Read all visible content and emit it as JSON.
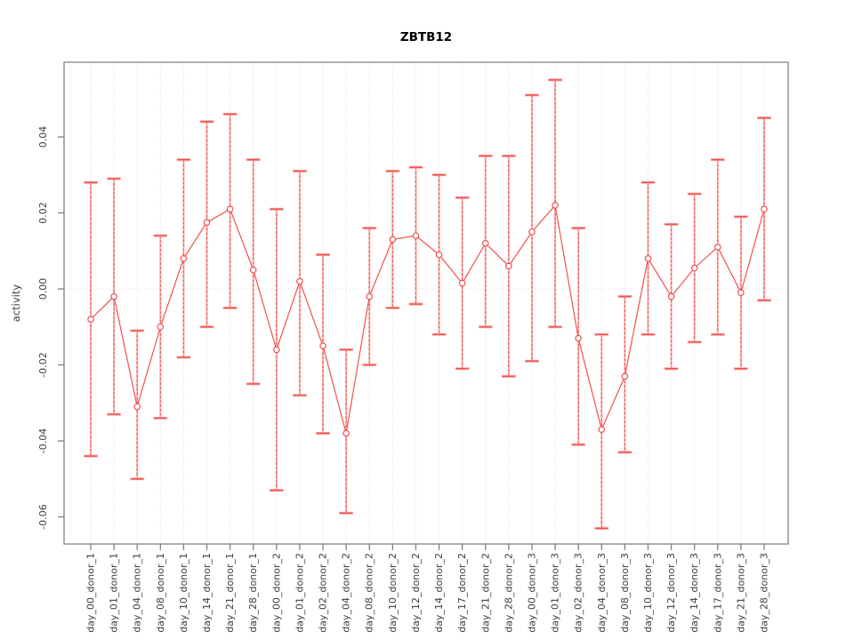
{
  "page": {
    "background": "#ffffff"
  },
  "chart_data": {
    "type": "line",
    "title": "ZBTB12",
    "xlabel": "",
    "ylabel": "activity",
    "legend": "none",
    "grid": {
      "vertical_dotted_per_category": true,
      "horizontal_dotted_at_zero": true
    },
    "marker": "open-circle",
    "error_bars": true,
    "ylim": [
      -0.066,
      0.058
    ],
    "ytick_labels": [
      "0.04",
      "0.02",
      "0.00",
      "-0.02",
      "-0.04",
      "-0.06"
    ],
    "ytick_values": [
      0.04,
      0.02,
      0.0,
      -0.02,
      -0.04,
      -0.06
    ],
    "colors": {
      "series": "#f0514e",
      "error_shaft_underlay": "#f8adab",
      "grid": "#d9d9d9",
      "axis_box": "#828282",
      "tick_label": "#3d3d3d",
      "title": "#000000"
    },
    "categories": [
      "day_00_donor_1",
      "day_01_donor_1",
      "day_04_donor_1",
      "day_08_donor_1",
      "day_10_donor_1",
      "day_14_donor_1",
      "day_21_donor_1",
      "day_28_donor_1",
      "day_00_donor_2",
      "day_01_donor_2",
      "day_02_donor_2",
      "day_04_donor_2",
      "day_08_donor_2",
      "day_10_donor_2",
      "day_12_donor_2",
      "day_14_donor_2",
      "day_17_donor_2",
      "day_21_donor_2",
      "day_28_donor_2",
      "day_00_donor_3",
      "day_01_donor_3",
      "day_02_donor_3",
      "day_04_donor_3",
      "day_08_donor_3",
      "day_10_donor_3",
      "day_12_donor_3",
      "day_14_donor_3",
      "day_17_donor_3",
      "day_21_donor_3",
      "day_28_donor_3"
    ],
    "values": [
      -0.008,
      -0.002,
      -0.031,
      -0.01,
      0.008,
      0.0175,
      0.021,
      0.005,
      -0.016,
      0.002,
      -0.015,
      -0.038,
      -0.002,
      0.013,
      0.014,
      0.009,
      0.0015,
      0.012,
      0.006,
      0.015,
      0.022,
      -0.013,
      -0.037,
      -0.023,
      0.008,
      -0.002,
      0.0055,
      0.011,
      -0.001,
      0.021
    ],
    "ci_high": [
      0.028,
      0.029,
      -0.011,
      0.014,
      0.034,
      0.044,
      0.046,
      0.034,
      0.021,
      0.031,
      0.009,
      -0.016,
      0.016,
      0.031,
      0.032,
      0.03,
      0.024,
      0.035,
      0.035,
      0.051,
      0.055,
      0.016,
      -0.012,
      -0.002,
      0.028,
      0.017,
      0.025,
      0.034,
      0.019,
      0.045
    ],
    "ci_low": [
      -0.044,
      -0.033,
      -0.05,
      -0.034,
      -0.018,
      -0.01,
      -0.005,
      -0.025,
      -0.053,
      -0.028,
      -0.038,
      -0.059,
      -0.02,
      -0.005,
      -0.004,
      -0.012,
      -0.021,
      -0.01,
      -0.023,
      -0.019,
      -0.01,
      -0.041,
      -0.063,
      -0.043,
      -0.012,
      -0.021,
      -0.014,
      -0.012,
      -0.021,
      -0.003
    ]
  }
}
